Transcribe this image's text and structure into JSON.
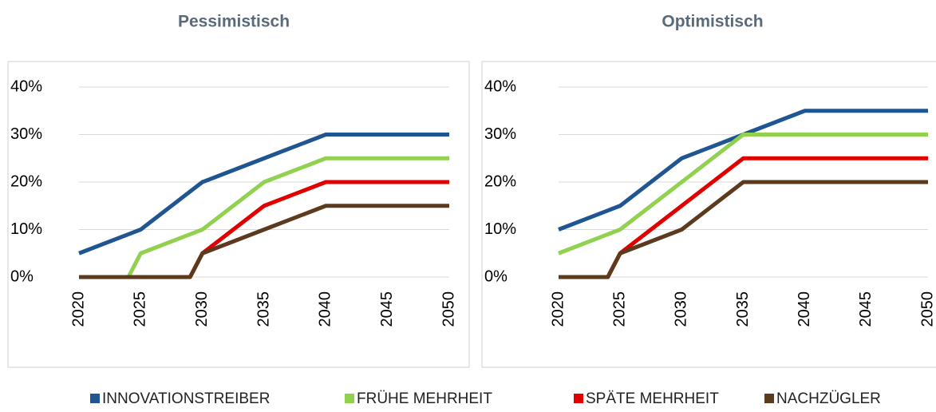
{
  "chart_data": [
    {
      "type": "line",
      "title": "Pessimistisch",
      "x": [
        2020,
        2024,
        2025,
        2029,
        2030,
        2035,
        2040,
        2045,
        2050
      ],
      "series": [
        {
          "name": "INNOVATIONSTREIBER",
          "color": "#1f5591",
          "values": [
            5,
            9,
            10,
            18,
            20,
            25,
            30,
            30,
            30
          ]
        },
        {
          "name": "FRÜHE MEHRHEIT",
          "color": "#92d050",
          "values": [
            0,
            0,
            5,
            9,
            10,
            20,
            25,
            25,
            25
          ]
        },
        {
          "name": "SPÄTE MEHRHEIT",
          "color": "#e00000",
          "values": [
            0,
            0,
            0,
            0,
            5,
            15,
            20,
            20,
            20
          ]
        },
        {
          "name": "NACHZÜGLER",
          "color": "#5c3a1e",
          "values": [
            0,
            0,
            0,
            0,
            5,
            10,
            15,
            15,
            15
          ]
        }
      ],
      "xlim": [
        2020,
        2050
      ],
      "xticks": [
        2020,
        2025,
        2030,
        2035,
        2040,
        2045,
        2050
      ],
      "ylim": [
        0,
        40
      ],
      "yticks": [
        {
          "value": 0,
          "label": "0%"
        },
        {
          "value": 10,
          "label": "10%"
        },
        {
          "value": 20,
          "label": "20%"
        },
        {
          "value": 30,
          "label": "30%"
        },
        {
          "value": 40,
          "label": "40%"
        }
      ],
      "grid": true
    },
    {
      "type": "line",
      "title": "Optimistisch",
      "x": [
        2020,
        2024,
        2025,
        2030,
        2035,
        2040,
        2045,
        2050
      ],
      "series": [
        {
          "color": "#1f5591",
          "values": [
            10,
            14,
            15,
            25,
            30,
            35,
            35,
            35
          ]
        },
        {
          "color": "#92d050",
          "values": [
            5,
            9,
            10,
            20,
            30,
            30,
            30,
            30
          ]
        },
        {
          "color": "#e00000",
          "values": [
            0,
            0,
            5,
            15,
            25,
            25,
            25,
            25
          ]
        },
        {
          "color": "#5c3a1e",
          "values": [
            0,
            0,
            5,
            10,
            20,
            20,
            20,
            20
          ]
        }
      ],
      "xlim": [
        2020,
        2050
      ],
      "xticks": [
        2020,
        2025,
        2030,
        2035,
        2040,
        2045,
        2050
      ],
      "ylim": [
        0,
        40
      ],
      "yticks": [
        {
          "value": 0,
          "label": "0%"
        },
        {
          "value": 10,
          "label": "10%"
        },
        {
          "value": 20,
          "label": "20%"
        },
        {
          "value": 30,
          "label": "30%"
        },
        {
          "value": 40,
          "label": "40%"
        }
      ],
      "grid": true
    }
  ]
}
